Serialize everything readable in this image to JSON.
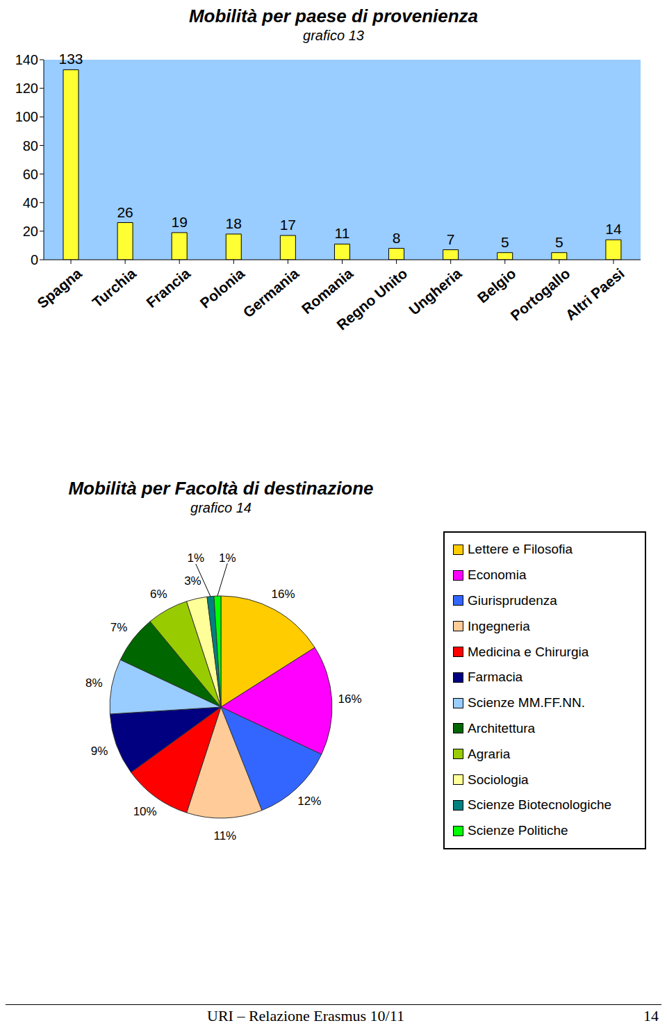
{
  "chart_data": [
    {
      "type": "bar",
      "title": "Mobilità per paese di provenienza",
      "subtitle": "grafico 13",
      "categories": [
        "Spagna",
        "Turchia",
        "Francia",
        "Polonia",
        "Germania",
        "Romania",
        "Regno Unito",
        "Ungheria",
        "Belgio",
        "Portogallo",
        "Altri Paesi"
      ],
      "values": [
        133,
        26,
        19,
        18,
        17,
        11,
        8,
        7,
        5,
        5,
        14
      ],
      "color": "#ffff33",
      "ylim": [
        0,
        140
      ],
      "yticks": [
        0,
        20,
        40,
        60,
        80,
        100,
        120,
        140
      ],
      "grid": false,
      "data_labels": true
    },
    {
      "type": "pie",
      "title": "Mobilità per Facoltà di destinazione",
      "subtitle": "grafico 14",
      "categories": [
        "Lettere e Filosofia",
        "Economia",
        "Giurisprudenza",
        "Ingegneria",
        "Medicina e Chirurgia",
        "Farmacia",
        "Scienze MM.FF.NN.",
        "Architettura",
        "Agraria",
        "Sociologia",
        "Scienze Biotecnologiche",
        "Scienze Politiche"
      ],
      "values": [
        16,
        16,
        12,
        11,
        10,
        9,
        8,
        7,
        6,
        3,
        1,
        1
      ],
      "value_labels": [
        "16%",
        "16%",
        "12%",
        "11%",
        "10%",
        "9%",
        "8%",
        "7%",
        "6%",
        "3%",
        "1%",
        "1%"
      ],
      "colors": [
        "#ffcc00",
        "#ff00ff",
        "#3366ff",
        "#ffcc99",
        "#ff0000",
        "#000080",
        "#99ccff",
        "#006600",
        "#99cc00",
        "#ffff99",
        "#008080",
        "#00ff00"
      ],
      "legend": "right",
      "data_labels": true
    }
  ],
  "footer": {
    "text": "URI – Relazione Erasmus 10/11",
    "page": 14
  }
}
